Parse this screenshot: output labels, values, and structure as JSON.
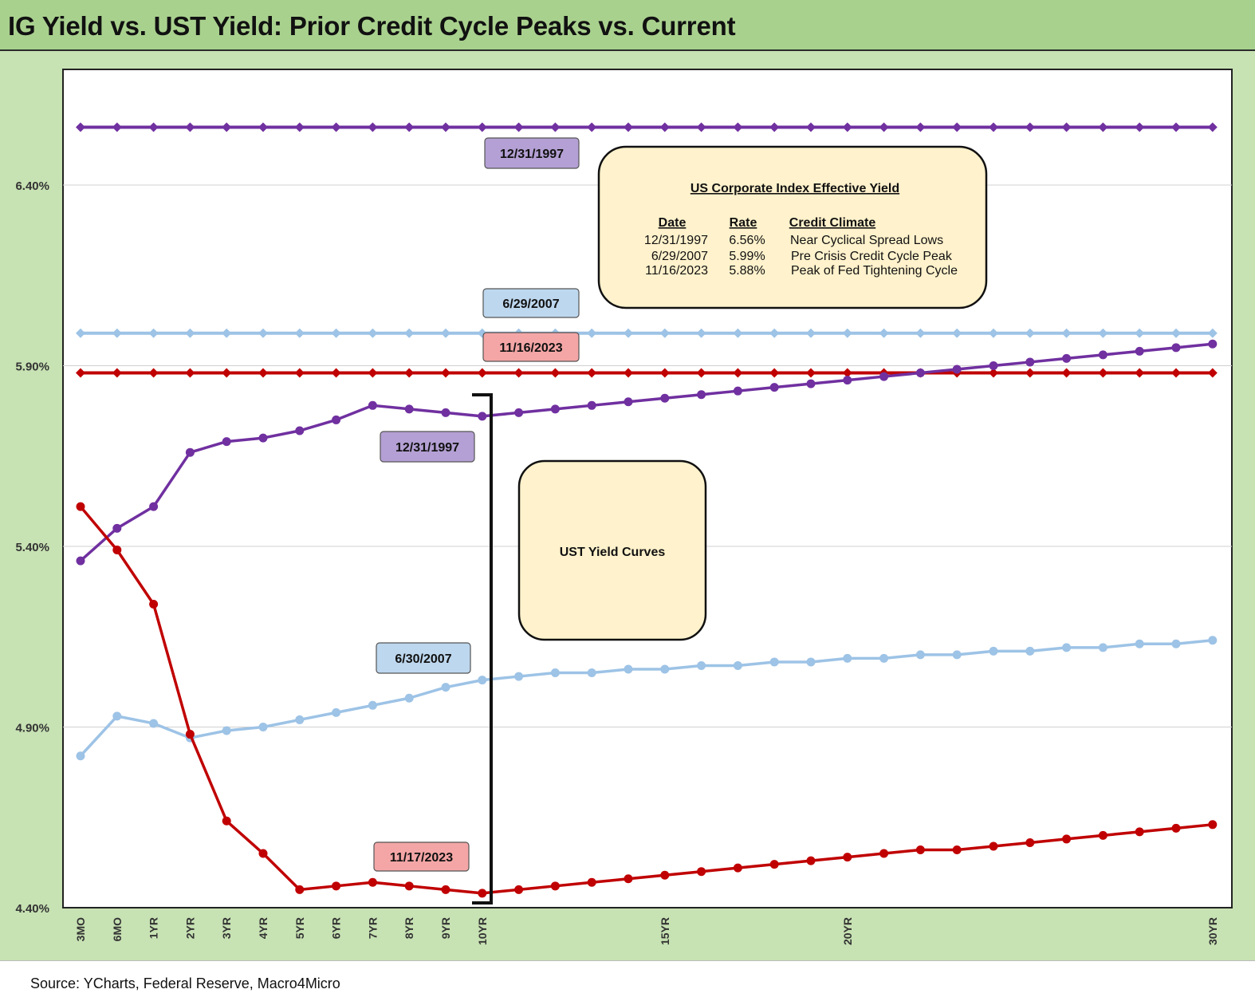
{
  "title": "IG Yield vs. UST Yield: Prior Credit Cycle Peaks vs. Current",
  "source": "Source: YCharts, Federal Reserve, Macro4Micro",
  "colors": {
    "purple": "#7030a0",
    "light_blue": "#9dc3e6",
    "red": "#c00000",
    "title_bg": "#a9d18e",
    "chart_bg": "#c7e2b3",
    "box_fill": "#fff2cc",
    "tag_purple": "#b4a0d4",
    "tag_blue": "#bdd7ee",
    "tag_red": "#f4a6a6"
  },
  "chart_data": {
    "type": "line",
    "title": "IG Yield vs. UST Yield: Prior Credit Cycle Peaks vs. Current",
    "xlabel": "",
    "ylabel": "",
    "ylim": [
      4.4,
      6.72
    ],
    "y_ticks": [
      "4.40%",
      "4.90%",
      "5.40%",
      "5.90%",
      "6.40%"
    ],
    "y_tick_values": [
      4.4,
      4.9,
      5.4,
      5.9,
      6.4
    ],
    "x_tick_labels": [
      "3MO",
      "6MO",
      "1YR",
      "2YR",
      "3YR",
      "4YR",
      "5YR",
      "6YR",
      "7YR",
      "8YR",
      "9YR",
      "10YR",
      "15YR",
      "20YR",
      "30YR"
    ],
    "x_tick_positions": [
      0,
      1,
      2,
      3,
      4,
      5,
      6,
      7,
      8,
      9,
      10,
      11,
      16,
      21,
      31
    ],
    "x_points": 32,
    "grid": true,
    "series": [
      {
        "name": "12/31/1997",
        "kind": "ig",
        "color": "#7030a0",
        "marker": "diamond",
        "values": [
          6.56,
          6.56,
          6.56,
          6.56,
          6.56,
          6.56,
          6.56,
          6.56,
          6.56,
          6.56,
          6.56,
          6.56,
          6.56,
          6.56,
          6.56,
          6.56,
          6.56,
          6.56,
          6.56,
          6.56,
          6.56,
          6.56,
          6.56,
          6.56,
          6.56,
          6.56,
          6.56,
          6.56,
          6.56,
          6.56,
          6.56,
          6.56
        ]
      },
      {
        "name": "6/29/2007",
        "kind": "ig",
        "color": "#9dc3e6",
        "marker": "diamond",
        "values": [
          5.99,
          5.99,
          5.99,
          5.99,
          5.99,
          5.99,
          5.99,
          5.99,
          5.99,
          5.99,
          5.99,
          5.99,
          5.99,
          5.99,
          5.99,
          5.99,
          5.99,
          5.99,
          5.99,
          5.99,
          5.99,
          5.99,
          5.99,
          5.99,
          5.99,
          5.99,
          5.99,
          5.99,
          5.99,
          5.99,
          5.99,
          5.99
        ]
      },
      {
        "name": "11/16/2023",
        "kind": "ig",
        "color": "#c00000",
        "marker": "diamond",
        "values": [
          5.88,
          5.88,
          5.88,
          5.88,
          5.88,
          5.88,
          5.88,
          5.88,
          5.88,
          5.88,
          5.88,
          5.88,
          5.88,
          5.88,
          5.88,
          5.88,
          5.88,
          5.88,
          5.88,
          5.88,
          5.88,
          5.88,
          5.88,
          5.88,
          5.88,
          5.88,
          5.88,
          5.88,
          5.88,
          5.88,
          5.88,
          5.88
        ]
      },
      {
        "name": "12/31/1997",
        "kind": "ust",
        "color": "#7030a0",
        "marker": "circle",
        "values": [
          5.36,
          5.45,
          5.51,
          5.66,
          5.69,
          5.7,
          5.72,
          5.75,
          5.79,
          5.78,
          5.77,
          5.76,
          5.77,
          5.78,
          5.79,
          5.8,
          5.81,
          5.82,
          5.83,
          5.84,
          5.85,
          5.86,
          5.87,
          5.88,
          5.89,
          5.9,
          5.91,
          5.92,
          5.93,
          5.94,
          5.95,
          5.96
        ]
      },
      {
        "name": "6/30/2007",
        "kind": "ust",
        "color": "#9dc3e6",
        "marker": "circle",
        "values": [
          4.82,
          4.93,
          4.91,
          4.87,
          4.89,
          4.9,
          4.92,
          4.94,
          4.96,
          4.98,
          5.01,
          5.03,
          5.04,
          5.05,
          5.05,
          5.06,
          5.06,
          5.07,
          5.07,
          5.08,
          5.08,
          5.09,
          5.09,
          5.1,
          5.1,
          5.11,
          5.11,
          5.12,
          5.12,
          5.13,
          5.13,
          5.14
        ]
      },
      {
        "name": "11/17/2023",
        "kind": "ust",
        "color": "#c00000",
        "marker": "circle",
        "values": [
          5.51,
          5.39,
          5.24,
          4.88,
          4.64,
          4.55,
          4.45,
          4.46,
          4.47,
          4.46,
          4.45,
          4.44,
          4.45,
          4.46,
          4.47,
          4.48,
          4.49,
          4.5,
          4.51,
          4.52,
          4.53,
          4.54,
          4.55,
          4.56,
          4.56,
          4.57,
          4.58,
          4.59,
          4.6,
          4.61,
          4.62,
          4.63
        ]
      }
    ],
    "annotations": {
      "tags": [
        {
          "text": "12/31/1997",
          "color": "tag_purple"
        },
        {
          "text": "6/29/2007",
          "color": "tag_blue"
        },
        {
          "text": "11/16/2023",
          "color": "tag_red"
        },
        {
          "text": "12/31/1997",
          "color": "tag_purple"
        },
        {
          "text": "6/30/2007",
          "color": "tag_blue"
        },
        {
          "text": "11/17/2023",
          "color": "tag_red"
        }
      ],
      "index_box": {
        "heading": "US Corporate Index Effective Yield",
        "columns": [
          "Date",
          "Rate",
          "Credit Climate"
        ],
        "rows": [
          [
            "12/31/1997",
            "6.56%",
            "Near Cyclical Spread Lows"
          ],
          [
            "6/29/2007",
            "5.99%",
            "Pre Crisis Credit Cycle Peak"
          ],
          [
            "11/16/2023",
            "5.88%",
            "Peak of Fed Tightening Cycle"
          ]
        ]
      },
      "ust_box": {
        "text": "UST Yield Curves"
      }
    }
  }
}
